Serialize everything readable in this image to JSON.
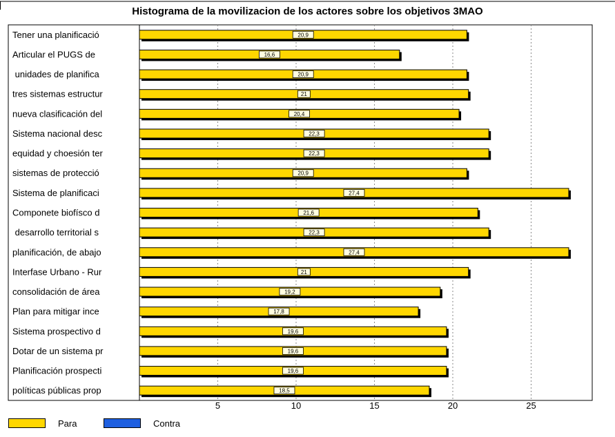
{
  "chart_data": {
    "type": "bar",
    "orientation": "horizontal",
    "title": "Histograma de la movilizacion de los actores sobre los objetivos 3MAO",
    "categories": [
      "Tener una planificació",
      "Articular el PUGS de",
      " unidades de planifica",
      "tres sistemas estructur",
      "nueva clasificación del",
      "Sistema nacional desc",
      "equidad y choesión ter",
      "sistemas de protecció",
      "Sistema de planificaci",
      "Componete biofísco d",
      " desarrollo territorial s",
      "planificación, de abajo",
      "Interfase Urbano - Rur",
      "consolidación de área",
      "Plan para mitigar ince",
      "Sistema prospectivo d",
      "Dotar de un sistema pr",
      "Planificación prospecti",
      "políticas públicas prop"
    ],
    "series": [
      {
        "name": "Para",
        "color": "#FFD700",
        "values": [
          20.9,
          16.6,
          20.9,
          21,
          20.4,
          22.3,
          22.3,
          20.9,
          27.4,
          21.6,
          22.3,
          27.4,
          21,
          19.2,
          17.8,
          19.6,
          19.6,
          19.6,
          18.5
        ],
        "labels": [
          "20,9",
          "16,6",
          "20,9",
          "21",
          "20,4",
          "22,3",
          "22,3",
          "20,9",
          "27,4",
          "21,6",
          "22,3",
          "27,4",
          "21",
          "19,2",
          "17,8",
          "19,6",
          "19,6",
          "19,6",
          "18,5"
        ]
      },
      {
        "name": "Contra",
        "color": "#1E5FE0",
        "values": [
          0,
          0,
          0,
          0,
          0,
          0,
          0,
          0,
          0,
          0,
          0,
          0,
          0,
          0,
          0,
          0,
          0,
          0,
          0
        ]
      }
    ],
    "xticks": [
      5,
      10,
      15,
      20,
      25
    ],
    "xlim": [
      0,
      28.9
    ],
    "grid": true,
    "legend_position": "bottom-left"
  }
}
